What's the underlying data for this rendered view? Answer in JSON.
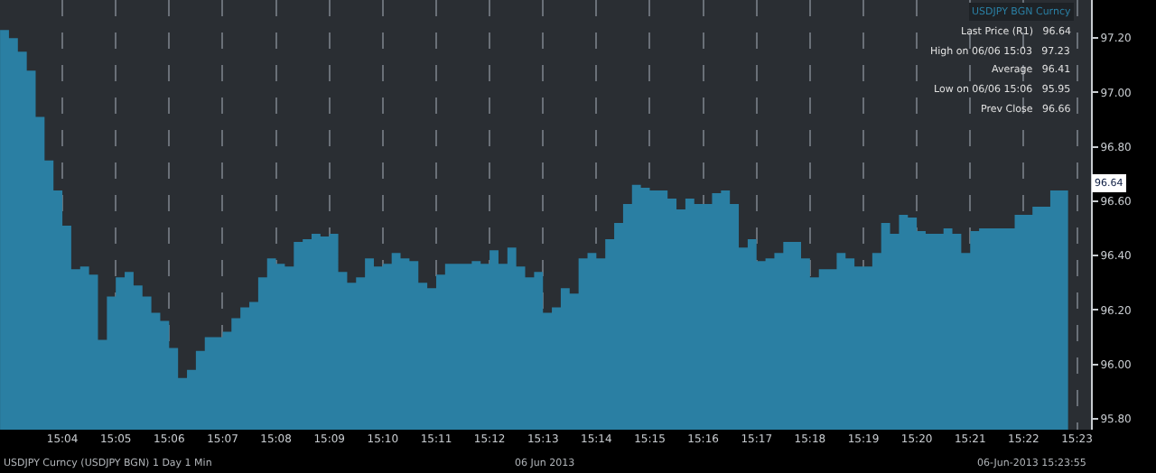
{
  "chart_data": {
    "type": "area",
    "x": [
      15.04722,
      15.05,
      15.05278,
      15.05556,
      15.05833,
      15.06111,
      15.06389,
      15.06667,
      15.06944,
      15.07222,
      15.075,
      15.07778,
      15.08056,
      15.08333,
      15.08611,
      15.08889,
      15.09167,
      15.09444,
      15.09722,
      15.1,
      15.10278,
      15.10556,
      15.10833,
      15.11111,
      15.11389,
      15.11667,
      15.11944,
      15.12222,
      15.125,
      15.12778,
      15.13056,
      15.13333,
      15.13611,
      15.13889,
      15.14167,
      15.14444,
      15.14722,
      15.15,
      15.15278,
      15.15556,
      15.15833,
      15.16111,
      15.16389,
      15.16667,
      15.16944,
      15.17222,
      15.175,
      15.17778,
      15.18056,
      15.18333,
      15.18611,
      15.18889,
      15.19167,
      15.19444,
      15.19722,
      15.2,
      15.20278,
      15.20556,
      15.20833,
      15.21111,
      15.21389,
      15.21667,
      15.21944,
      15.22222,
      15.225,
      15.22778,
      15.23056,
      15.23333,
      15.23611,
      15.23889,
      15.24167,
      15.24444,
      15.24722,
      15.25,
      15.25278,
      15.25556,
      15.25833,
      15.26111,
      15.26389,
      15.26667,
      15.26944,
      15.27222,
      15.275,
      15.27778,
      15.28056,
      15.28333,
      15.28611,
      15.28889,
      15.29167,
      15.29444,
      15.29722,
      15.3,
      15.30278,
      15.30556,
      15.30833,
      15.31111,
      15.31389,
      15.31667,
      15.31944,
      15.32222,
      15.325,
      15.32778,
      15.33056,
      15.33333,
      15.33611,
      15.33889,
      15.34167,
      15.34444,
      15.34722,
      15.35,
      15.35278,
      15.35556,
      15.35833,
      15.36111,
      15.36389,
      15.36667,
      15.36944,
      15.37222,
      15.375,
      15.37778,
      15.38056
    ],
    "series": [
      {
        "name": "USDJPY BGN Curncy",
        "color": "#2a7fa3",
        "values": [
          97.23,
          97.2,
          97.15,
          97.08,
          96.91,
          96.75,
          96.64,
          96.51,
          96.35,
          96.36,
          96.33,
          96.09,
          96.25,
          96.32,
          96.34,
          96.29,
          96.25,
          96.19,
          96.16,
          96.06,
          95.95,
          95.98,
          96.05,
          96.1,
          96.1,
          96.12,
          96.17,
          96.21,
          96.23,
          96.32,
          96.39,
          96.37,
          96.36,
          96.45,
          96.46,
          96.48,
          96.47,
          96.48,
          96.34,
          96.3,
          96.32,
          96.39,
          96.36,
          96.37,
          96.41,
          96.39,
          96.38,
          96.3,
          96.28,
          96.33,
          96.37,
          96.37,
          96.37,
          96.38,
          96.37,
          96.42,
          96.37,
          96.43,
          96.36,
          96.32,
          96.34,
          96.19,
          96.21,
          96.28,
          96.26,
          96.39,
          96.41,
          96.39,
          96.46,
          96.52,
          96.59,
          96.66,
          96.65,
          96.64,
          96.64,
          96.61,
          96.57,
          96.61,
          96.59,
          96.59,
          96.63,
          96.64,
          96.59,
          96.43,
          96.46,
          96.38,
          96.39,
          96.41,
          96.45,
          96.45,
          96.39,
          96.32,
          96.35,
          96.35,
          96.41,
          96.39,
          96.36,
          96.36,
          96.41,
          96.52,
          96.48,
          96.55,
          96.54,
          96.49,
          96.48,
          96.48,
          96.5,
          96.48,
          96.41,
          96.49,
          96.5,
          96.5,
          96.5,
          96.5,
          96.55,
          96.55,
          96.58,
          96.58,
          96.64,
          96.64,
          96.64
        ]
      }
    ],
    "xlim": [
      15.0472,
      15.3877
    ],
    "xticks": [
      {
        "value": 15.06667,
        "label": "15:04"
      },
      {
        "value": 15.08333,
        "label": "15:05"
      },
      {
        "value": 15.1,
        "label": "15:06"
      },
      {
        "value": 15.11667,
        "label": "15:07"
      },
      {
        "value": 15.13333,
        "label": "15:08"
      },
      {
        "value": 15.15,
        "label": "15:09"
      },
      {
        "value": 15.16667,
        "label": "15:10"
      },
      {
        "value": 15.18333,
        "label": "15:11"
      },
      {
        "value": 15.2,
        "label": "15:12"
      },
      {
        "value": 15.21667,
        "label": "15:13"
      },
      {
        "value": 15.23333,
        "label": "15:14"
      },
      {
        "value": 15.25,
        "label": "15:15"
      },
      {
        "value": 15.26667,
        "label": "15:16"
      },
      {
        "value": 15.28333,
        "label": "15:17"
      },
      {
        "value": 15.3,
        "label": "15:18"
      },
      {
        "value": 15.31667,
        "label": "15:19"
      },
      {
        "value": 15.33333,
        "label": "15:20"
      },
      {
        "value": 15.35,
        "label": "15:21"
      },
      {
        "value": 15.36667,
        "label": "15:22"
      },
      {
        "value": 15.38333,
        "label": "15:23"
      }
    ],
    "ylim": [
      95.76,
      97.34
    ],
    "yticks": [
      {
        "value": 95.8,
        "label": "95.80"
      },
      {
        "value": 96.0,
        "label": "96.00"
      },
      {
        "value": 96.2,
        "label": "96.20"
      },
      {
        "value": 96.4,
        "label": "96.40"
      },
      {
        "value": 96.6,
        "label": "96.60"
      },
      {
        "value": 96.8,
        "label": "96.80"
      },
      {
        "value": 97.0,
        "label": "97.00"
      },
      {
        "value": 97.2,
        "label": "97.20"
      }
    ],
    "grid": "x",
    "annotations": [
      "96.64",
      "Last Price (R1)   96.64",
      "High on 06/06 15:03   97.23",
      "Average   96.41",
      "Low on 06/06 15:06   95.95",
      "Prev Close   96.66",
      "USDJPY Curncy (USDJPY BGN) 1 Day 1 Min",
      "06 Jun 2013",
      "06-Jun-2013 15:23:55"
    ]
  }
}
